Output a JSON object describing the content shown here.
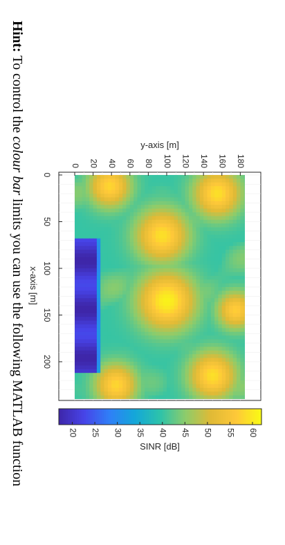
{
  "hint": {
    "lead": "Hint:",
    "part1": " To control the ",
    "em": "colour bar",
    "part2": " limits you can use the following MATLAB function"
  },
  "chart_data": {
    "type": "heatmap",
    "xlabel": "x-axis [m]",
    "ylabel": "y-axis [m]",
    "xlim": [
      0,
      240
    ],
    "ylim": [
      0,
      185
    ],
    "xticks": [
      0,
      50,
      100,
      150,
      200
    ],
    "yticks": [
      0,
      20,
      40,
      60,
      80,
      100,
      120,
      140,
      160,
      180
    ],
    "colorbar": {
      "label": "SINR [dB]",
      "range": [
        17,
        62
      ],
      "ticks": [
        20,
        25,
        30,
        35,
        40,
        45,
        50,
        55,
        60
      ]
    },
    "field": {
      "baseline": 40,
      "hotspots": [
        {
          "x": 12,
          "y": 38,
          "peak": 58,
          "spread": 16
        },
        {
          "x": 20,
          "y": 155,
          "peak": 59,
          "spread": 18
        },
        {
          "x": 65,
          "y": 95,
          "peak": 59,
          "spread": 20
        },
        {
          "x": 135,
          "y": 100,
          "peak": 61,
          "spread": 22
        },
        {
          "x": 145,
          "y": 175,
          "peak": 57,
          "spread": 14
        },
        {
          "x": 215,
          "y": 150,
          "peak": 59,
          "spread": 18
        },
        {
          "x": 225,
          "y": 45,
          "peak": 58,
          "spread": 16
        }
      ],
      "low_zone": {
        "x_start": 70,
        "x_end": 210,
        "y_max": 30,
        "value": 20
      }
    }
  },
  "colors": {
    "colormap": [
      "#3e26a8",
      "#4744e8",
      "#2f7ff7",
      "#14a7d9",
      "#2dc3aa",
      "#8dcc6b",
      "#e0ba36",
      "#fec839",
      "#f9fb14"
    ]
  }
}
